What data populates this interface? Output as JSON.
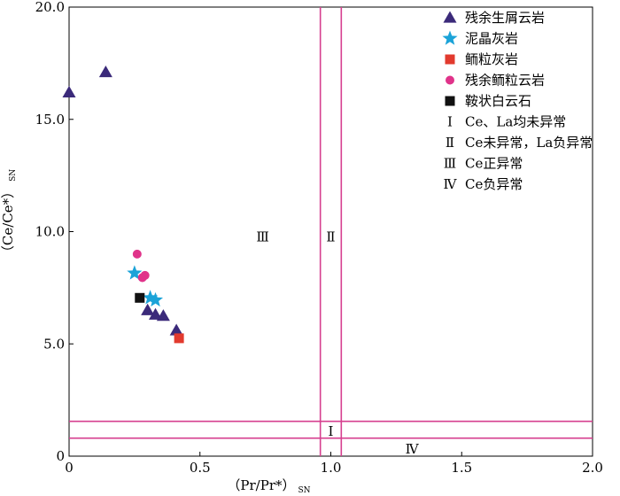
{
  "chart_data": {
    "type": "scatter",
    "xlabel": "（Pr/Pr*）",
    "xlabel_sub": "SN",
    "ylabel": "（Ce/Ce*）",
    "ylabel_sub": "SN",
    "xlim": [
      0,
      2.0
    ],
    "ylim": [
      0,
      20.0
    ],
    "x_ticks": [
      0,
      0.5,
      1.0,
      1.5,
      2.0
    ],
    "x_tick_labels": [
      "0",
      "0.5",
      "1.0",
      "1.5",
      "2.0"
    ],
    "y_ticks": [
      0,
      5.0,
      10.0,
      15.0,
      20.0
    ],
    "y_tick_labels": [
      "0",
      "5.0",
      "10.0",
      "15.0",
      "20.0"
    ],
    "grid": false,
    "legend_position": "top-right",
    "series": [
      {
        "name": "残余生屑云岩",
        "marker": "triangle",
        "color": "#3b2a7a",
        "points": [
          [
            0.0,
            16.2
          ],
          [
            0.14,
            17.1
          ],
          [
            0.3,
            6.5
          ],
          [
            0.33,
            6.3
          ],
          [
            0.36,
            6.25
          ],
          [
            0.41,
            5.6
          ]
        ]
      },
      {
        "name": "泥晶灰岩",
        "marker": "star",
        "color": "#1ba3d8",
        "points": [
          [
            0.25,
            8.15
          ],
          [
            0.31,
            7.05
          ],
          [
            0.33,
            6.95
          ]
        ]
      },
      {
        "name": "鲕粒灰岩",
        "marker": "square",
        "color": "#e23a2e",
        "points": [
          [
            0.42,
            5.25
          ]
        ]
      },
      {
        "name": "残余鲕粒云岩",
        "marker": "circle",
        "color": "#e0338a",
        "points": [
          [
            0.26,
            9.0
          ],
          [
            0.28,
            7.95
          ],
          [
            0.29,
            8.05
          ]
        ]
      },
      {
        "name": "鞍状白云石",
        "marker": "square",
        "color": "#111111",
        "points": [
          [
            0.27,
            7.05
          ]
        ]
      }
    ],
    "legend_notes": [
      {
        "symbol": "Ⅰ",
        "text": "Ce、La均未异常"
      },
      {
        "symbol": "Ⅱ",
        "text": "Ce未异常，La负异常"
      },
      {
        "symbol": "Ⅲ",
        "text": "Ce正异常"
      },
      {
        "symbol": "Ⅳ",
        "text": "Ce负异常"
      }
    ],
    "boundary_lines": {
      "color": "#d63f8f",
      "vertical_x": [
        0.96,
        1.04
      ],
      "horizontal_y": [
        1.55,
        0.8
      ]
    },
    "region_labels": [
      {
        "text": "Ⅲ",
        "x": 0.74,
        "y": 9.8
      },
      {
        "text": "Ⅱ",
        "x": 1.0,
        "y": 9.8
      },
      {
        "text": "Ⅰ",
        "x": 1.0,
        "y": 1.15
      },
      {
        "text": "Ⅳ",
        "x": 1.31,
        "y": 0.35
      }
    ]
  }
}
